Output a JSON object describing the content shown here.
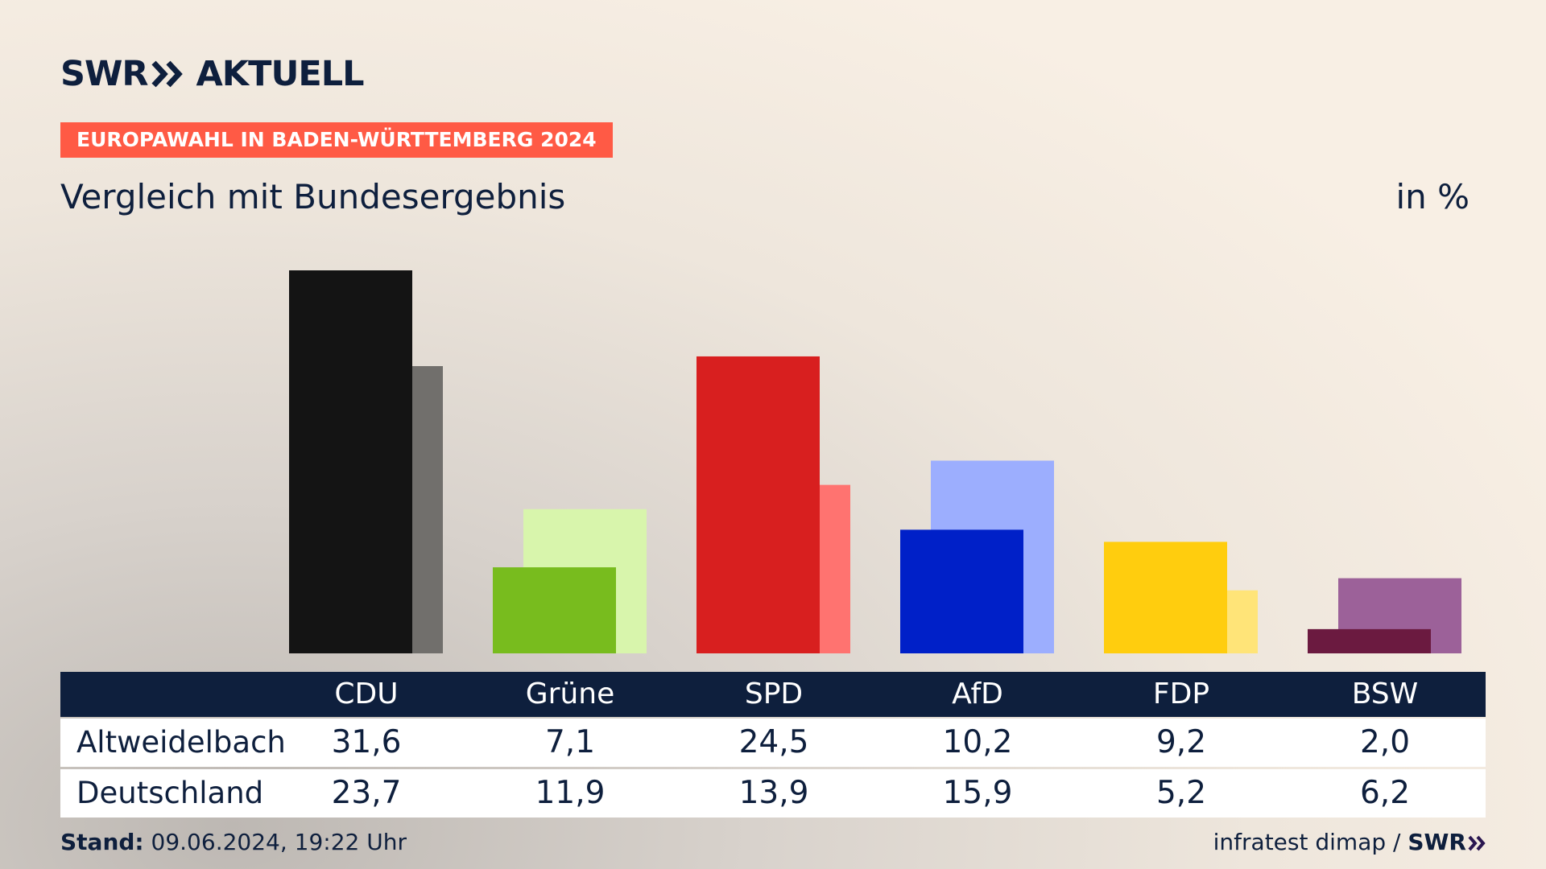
{
  "header": {
    "logo_left": "SWR",
    "logo_right": "AKTUELL",
    "badge": "EUROPAWAHL IN BADEN-WÜRTTEMBERG 2024",
    "subtitle": "Vergleich mit Bundesergebnis",
    "unit": "in %"
  },
  "footer": {
    "stand_label": "Stand:",
    "stand_value": "09.06.2024, 19:22 Uhr",
    "source": "infratest dimap /",
    "source_brand": "SWR"
  },
  "table": {
    "row_labels": [
      "Altweidelbach",
      "Deutschland"
    ],
    "rows": [
      [
        "31,6",
        "7,1",
        "24,5",
        "10,2",
        "9,2",
        "2,0"
      ],
      [
        "23,7",
        "11,9",
        "13,9",
        "15,9",
        "5,2",
        "6,2"
      ]
    ]
  },
  "chart_data": {
    "type": "bar",
    "categories": [
      "CDU",
      "Grüne",
      "SPD",
      "AfD",
      "FDP",
      "BSW"
    ],
    "series": [
      {
        "name": "Altweidelbach",
        "values": [
          31.6,
          7.1,
          24.5,
          10.2,
          9.2,
          2.0
        ],
        "colors": [
          "#141414",
          "#78bc1e",
          "#d81f1f",
          "#0020c8",
          "#ffcd0e",
          "#6b1a40"
        ]
      },
      {
        "name": "Deutschland",
        "values": [
          23.7,
          11.9,
          13.9,
          15.9,
          5.2,
          6.2
        ],
        "colors": [
          "#716f6c",
          "#d8f5ac",
          "#ff7370",
          "#9caefe",
          "#ffe478",
          "#9c6199"
        ]
      }
    ],
    "ylim": [
      0,
      31.6
    ],
    "xlabel": "",
    "ylabel": "",
    "grid": false
  }
}
